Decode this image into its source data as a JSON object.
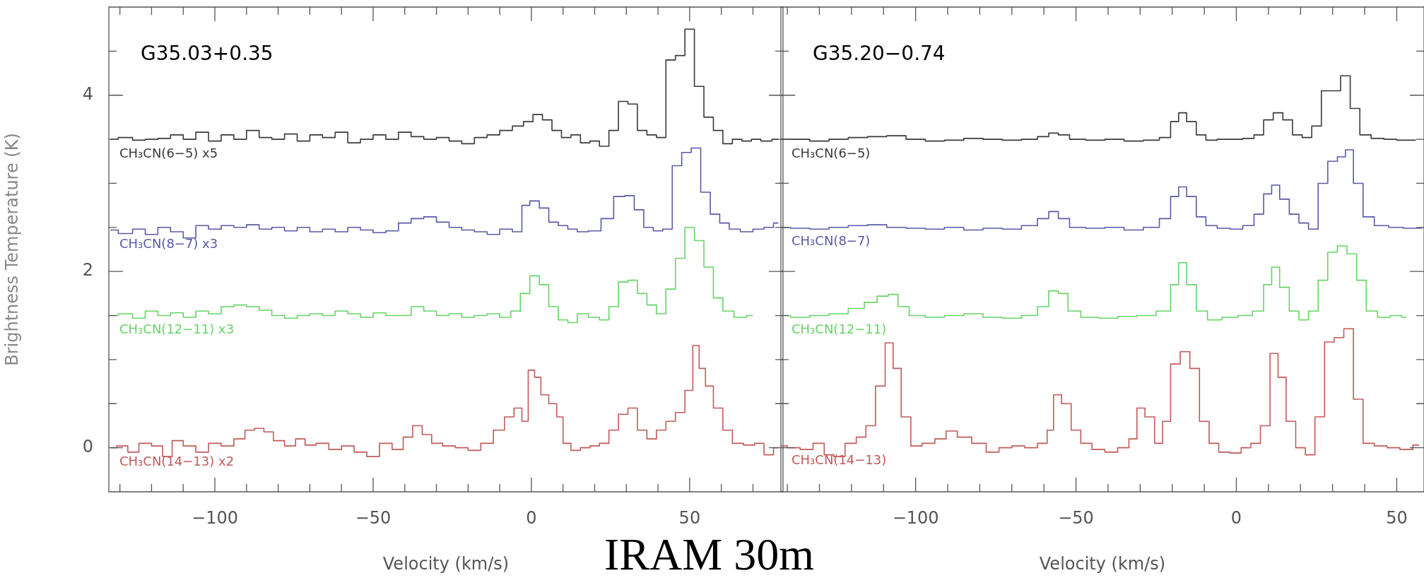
{
  "chart_data": [
    {
      "type": "step",
      "title": "G35.03+0.35",
      "xlabel": "Velocity (km/s)",
      "ylabel": "Brightness Temperature (K)",
      "legend": false,
      "grid": false,
      "xlim": [
        -133.5,
        79.5
      ],
      "ylim": [
        -0.5,
        5.0
      ],
      "xticks": [
        {
          "value": -130,
          "label": null
        },
        {
          "value": -120,
          "label": null
        },
        {
          "value": -110,
          "label": null
        },
        -100,
        {
          "value": -90,
          "label": null
        },
        {
          "value": -80,
          "label": null
        },
        {
          "value": -70,
          "label": null
        },
        {
          "value": -60,
          "label": null
        },
        -50,
        {
          "value": -40,
          "label": null
        },
        {
          "value": -30,
          "label": null
        },
        {
          "value": -20,
          "label": null
        },
        {
          "value": -10,
          "label": null
        },
        0,
        {
          "value": 10,
          "label": null
        },
        {
          "value": 20,
          "label": null
        },
        {
          "value": 30,
          "label": null
        },
        {
          "value": 40,
          "label": null
        },
        50,
        {
          "value": 60,
          "label": null
        },
        {
          "value": 70,
          "label": null
        }
      ],
      "yticks": [
        0,
        {
          "value": 0.5,
          "label": null
        },
        {
          "value": 1,
          "label": null
        },
        {
          "value": 1.5,
          "label": null
        },
        2,
        {
          "value": 2.5,
          "label": null
        },
        {
          "value": 3,
          "label": null
        },
        {
          "value": 3.5,
          "label": null
        },
        4,
        {
          "value": 4.5,
          "label": null
        }
      ],
      "annotations": [
        "IRAM 30m"
      ],
      "series": [
        {
          "name": "CH₃CN(6−5) x5",
          "color": "#3a3a3a",
          "x": [
            -133,
            -128,
            -124,
            -120,
            -116,
            -112,
            -108,
            -104,
            -100,
            -96,
            -92,
            -88,
            -84,
            -80,
            -76,
            -72,
            -68,
            -64,
            -60,
            -56,
            -52,
            -48,
            -44,
            -40,
            -36,
            -32,
            -28,
            -24,
            -20,
            -16,
            -12,
            -8,
            -4,
            -1,
            2,
            5,
            8,
            11,
            14,
            17,
            20,
            23,
            26,
            29,
            32,
            35,
            38,
            41,
            44,
            47,
            50,
            53,
            56,
            59,
            62,
            65,
            68,
            71,
            74,
            78
          ],
          "values": [
            3.5,
            3.52,
            3.49,
            3.5,
            3.51,
            3.55,
            3.5,
            3.58,
            3.48,
            3.55,
            3.5,
            3.6,
            3.52,
            3.5,
            3.56,
            3.48,
            3.55,
            3.52,
            3.58,
            3.46,
            3.5,
            3.55,
            3.5,
            3.58,
            3.53,
            3.5,
            3.52,
            3.48,
            3.45,
            3.52,
            3.55,
            3.6,
            3.65,
            3.7,
            3.78,
            3.72,
            3.6,
            3.52,
            3.55,
            3.46,
            3.48,
            3.42,
            3.6,
            3.93,
            3.9,
            3.6,
            3.55,
            3.52,
            4.4,
            4.45,
            4.75,
            4.1,
            3.75,
            3.6,
            3.45,
            3.5,
            3.48,
            3.5,
            3.48,
            3.5
          ]
        },
        {
          "name": "CH₃CN(8−7) x3",
          "color": "#5a5aa8",
          "x": [
            -133,
            -128,
            -124,
            -120,
            -116,
            -112,
            -108,
            -104,
            -100,
            -96,
            -92,
            -88,
            -84,
            -80,
            -76,
            -72,
            -68,
            -64,
            -60,
            -56,
            -52,
            -48,
            -44,
            -40,
            -36,
            -32,
            -28,
            -24,
            -20,
            -16,
            -12,
            -8,
            -4,
            -2,
            1,
            4,
            7,
            10,
            13,
            16,
            20,
            24,
            28,
            31,
            34,
            37,
            40,
            43,
            46,
            49,
            52,
            55,
            58,
            61,
            64,
            68,
            72,
            75,
            78
          ],
          "values": [
            2.47,
            2.43,
            2.48,
            2.42,
            2.5,
            2.45,
            2.38,
            2.52,
            2.48,
            2.52,
            2.5,
            2.53,
            2.48,
            2.5,
            2.46,
            2.5,
            2.45,
            2.48,
            2.45,
            2.5,
            2.47,
            2.44,
            2.46,
            2.55,
            2.6,
            2.62,
            2.56,
            2.5,
            2.47,
            2.45,
            2.42,
            2.48,
            2.45,
            2.75,
            2.8,
            2.72,
            2.56,
            2.52,
            2.48,
            2.45,
            2.46,
            2.6,
            2.85,
            2.86,
            2.7,
            2.5,
            2.46,
            2.48,
            3.2,
            3.35,
            3.4,
            2.9,
            2.65,
            2.55,
            2.48,
            2.45,
            2.48,
            2.5,
            2.55
          ]
        },
        {
          "name": "CH₃CN(12−11) x3",
          "color": "#66d466",
          "x": [
            -133,
            -128,
            -124,
            -120,
            -116,
            -112,
            -108,
            -104,
            -100,
            -96,
            -92,
            -88,
            -84,
            -80,
            -76,
            -72,
            -68,
            -64,
            -60,
            -56,
            -52,
            -48,
            -44,
            -40,
            -36,
            -32,
            -28,
            -24,
            -20,
            -16,
            -12,
            -8,
            -5,
            -2,
            1,
            4,
            7,
            10,
            13,
            16,
            20,
            23,
            26,
            29,
            32,
            35,
            38,
            41,
            44,
            47,
            50,
            53,
            56,
            59,
            62,
            66,
            70
          ],
          "values": [
            1.5,
            1.52,
            1.47,
            1.55,
            1.5,
            1.53,
            1.48,
            1.55,
            1.52,
            1.6,
            1.62,
            1.6,
            1.56,
            1.5,
            1.47,
            1.5,
            1.52,
            1.5,
            1.55,
            1.52,
            1.48,
            1.53,
            1.5,
            1.5,
            1.6,
            1.55,
            1.5,
            1.52,
            1.48,
            1.5,
            1.52,
            1.48,
            1.55,
            1.75,
            1.95,
            1.85,
            1.6,
            1.45,
            1.42,
            1.52,
            1.48,
            1.45,
            1.6,
            1.88,
            1.9,
            1.75,
            1.62,
            1.52,
            1.8,
            2.15,
            2.5,
            2.35,
            2.05,
            1.7,
            1.55,
            1.48,
            1.5
          ]
        },
        {
          "name": "CH₃CN(14−13) x2",
          "color": "#c25a5a",
          "x": [
            -133,
            -129,
            -126,
            -122,
            -118,
            -115,
            -112,
            -108,
            -104,
            -100,
            -96,
            -92,
            -89,
            -86,
            -83,
            -80,
            -76,
            -73,
            -70,
            -66,
            -62,
            -58,
            -54,
            -50,
            -46,
            -42,
            -39,
            -36,
            -33,
            -30,
            -26,
            -22,
            -18,
            -14,
            -10,
            -7,
            -4,
            -2,
            0,
            2,
            4,
            7,
            9,
            11,
            14,
            17,
            20,
            23,
            26,
            29,
            32,
            35,
            38,
            41,
            44,
            47,
            50,
            52,
            54,
            56,
            59,
            62,
            65,
            69,
            72,
            75,
            78
          ],
          "values": [
            0,
            0.02,
            -0.05,
            0.05,
            0.02,
            -0.1,
            0.08,
            0.02,
            -0.05,
            0.05,
            0.02,
            0.1,
            0.2,
            0.22,
            0.18,
            0.08,
            0.02,
            0.1,
            0.03,
            0.05,
            -0.02,
            0.02,
            -0.05,
            -0.1,
            0.05,
            -0.02,
            0.12,
            0.25,
            0.15,
            0.05,
            0.02,
            0,
            -0.03,
            0.05,
            0.2,
            0.35,
            0.45,
            0.3,
            0.88,
            0.8,
            0.6,
            0.5,
            0.35,
            0.05,
            -0.03,
            0,
            0.02,
            0.05,
            0.2,
            0.38,
            0.45,
            0.2,
            0.1,
            0.2,
            0.3,
            0.4,
            0.65,
            1.16,
            0.9,
            0.7,
            0.45,
            0.2,
            0.05,
            0.03,
            0.05,
            -0.08,
            0
          ]
        }
      ]
    },
    {
      "type": "step",
      "title": "G35.20−0.74",
      "xlabel": "Velocity (km/s)",
      "legend": false,
      "grid": false,
      "tick_labels": "x",
      "xlim": [
        -142,
        58.5
      ],
      "ylim": [
        -0.5,
        5.0
      ],
      "xticks": [
        {
          "value": -140,
          "label": null
        },
        {
          "value": -130,
          "label": null
        },
        {
          "value": -120,
          "label": null
        },
        {
          "value": -110,
          "label": null
        },
        -100,
        {
          "value": -90,
          "label": null
        },
        {
          "value": -80,
          "label": null
        },
        {
          "value": -70,
          "label": null
        },
        {
          "value": -60,
          "label": null
        },
        -50,
        {
          "value": -40,
          "label": null
        },
        {
          "value": -30,
          "label": null
        },
        {
          "value": -20,
          "label": null
        },
        {
          "value": -10,
          "label": null
        },
        0,
        {
          "value": 10,
          "label": null
        },
        {
          "value": 20,
          "label": null
        },
        {
          "value": 30,
          "label": null
        },
        {
          "value": 40,
          "label": null
        },
        50
      ],
      "yticks": [
        0,
        {
          "value": 0.5,
          "label": null
        },
        {
          "value": 1,
          "label": null
        },
        {
          "value": 1.5,
          "label": null
        },
        2,
        {
          "value": 2.5,
          "label": null
        },
        {
          "value": 3,
          "label": null
        },
        {
          "value": 3.5,
          "label": null
        },
        4,
        {
          "value": 4.5,
          "label": null
        }
      ],
      "series": [
        {
          "name": "CH₃CN(6−5)",
          "color": "#3a3a3a",
          "x": [
            -142,
            -136,
            -130,
            -124,
            -118,
            -112,
            -106,
            -100,
            -94,
            -88,
            -82,
            -76,
            -70,
            -64,
            -60,
            -57,
            -54,
            -50,
            -44,
            -38,
            -32,
            -26,
            -22,
            -19,
            -17,
            -14,
            -11,
            -8,
            -4,
            0,
            4,
            7,
            10,
            13,
            16,
            19,
            22,
            25,
            28,
            31,
            34,
            37,
            40,
            44,
            48,
            52,
            56
          ],
          "values": [
            3.5,
            3.5,
            3.48,
            3.5,
            3.52,
            3.53,
            3.54,
            3.5,
            3.48,
            3.49,
            3.51,
            3.5,
            3.49,
            3.5,
            3.53,
            3.57,
            3.55,
            3.5,
            3.49,
            3.5,
            3.48,
            3.49,
            3.52,
            3.7,
            3.8,
            3.7,
            3.55,
            3.49,
            3.5,
            3.5,
            3.51,
            3.55,
            3.72,
            3.8,
            3.72,
            3.55,
            3.52,
            3.65,
            4.05,
            4.05,
            4.22,
            3.85,
            3.55,
            3.51,
            3.5,
            3.49,
            3.49
          ]
        },
        {
          "name": "CH₃CN(8−7)",
          "color": "#5a5aa8",
          "x": [
            -142,
            -136,
            -130,
            -124,
            -118,
            -112,
            -106,
            -100,
            -94,
            -88,
            -82,
            -76,
            -70,
            -64,
            -60,
            -57,
            -54,
            -50,
            -44,
            -38,
            -32,
            -26,
            -22,
            -19,
            -17,
            -14,
            -11,
            -8,
            -4,
            0,
            4,
            7,
            10,
            12,
            15,
            18,
            21,
            24,
            27,
            30,
            33,
            35,
            38,
            41,
            45,
            50,
            54,
            58
          ],
          "values": [
            2.5,
            2.49,
            2.48,
            2.5,
            2.52,
            2.53,
            2.5,
            2.49,
            2.48,
            2.5,
            2.47,
            2.49,
            2.48,
            2.52,
            2.6,
            2.68,
            2.6,
            2.5,
            2.49,
            2.5,
            2.47,
            2.5,
            2.6,
            2.85,
            2.96,
            2.85,
            2.62,
            2.52,
            2.49,
            2.48,
            2.52,
            2.65,
            2.88,
            2.98,
            2.82,
            2.65,
            2.55,
            2.48,
            3.0,
            3.25,
            3.3,
            3.38,
            3.0,
            2.62,
            2.52,
            2.5,
            2.49,
            2.49
          ]
        },
        {
          "name": "CH₃CN(12−11)",
          "color": "#66d466",
          "x": [
            -142,
            -136,
            -130,
            -124,
            -118,
            -114,
            -110,
            -107,
            -104,
            -100,
            -94,
            -88,
            -82,
            -76,
            -70,
            -64,
            -60,
            -57,
            -54,
            -51,
            -46,
            -40,
            -34,
            -28,
            -22,
            -19,
            -17,
            -14,
            -11,
            -7,
            -2,
            3,
            7,
            10,
            12,
            15,
            18,
            21,
            24,
            27,
            30,
            33,
            36,
            39,
            42,
            46,
            50,
            53
          ],
          "values": [
            1.5,
            1.48,
            1.5,
            1.52,
            1.58,
            1.65,
            1.72,
            1.74,
            1.6,
            1.5,
            1.48,
            1.5,
            1.52,
            1.48,
            1.47,
            1.5,
            1.6,
            1.78,
            1.75,
            1.55,
            1.48,
            1.47,
            1.49,
            1.5,
            1.55,
            1.85,
            2.1,
            1.85,
            1.55,
            1.45,
            1.48,
            1.5,
            1.55,
            1.85,
            2.05,
            1.82,
            1.55,
            1.45,
            1.55,
            1.9,
            2.22,
            2.29,
            2.2,
            1.9,
            1.55,
            1.48,
            1.5,
            1.48
          ]
        },
        {
          "name": "CH₃CN(14−13)",
          "color": "#c25a5a",
          "x": [
            -142,
            -138,
            -134,
            -130,
            -127,
            -124,
            -120,
            -117,
            -114,
            -111,
            -108,
            -106,
            -103,
            -100,
            -96,
            -92,
            -89,
            -85,
            -80,
            -76,
            -72,
            -68,
            -64,
            -60,
            -58,
            -56,
            -53,
            -50,
            -47,
            -43,
            -39,
            -35,
            -32,
            -30,
            -27,
            -24,
            -22,
            -19,
            -16,
            -13,
            -10,
            -7,
            -4,
            0,
            3,
            6,
            9,
            12,
            14,
            17,
            20,
            23,
            26,
            29,
            32,
            35,
            38,
            41,
            45,
            49,
            53,
            57
          ],
          "values": [
            0.02,
            0,
            -0.02,
            0.05,
            -0.08,
            -0.1,
            0.05,
            0.12,
            0.25,
            0.7,
            1.19,
            0.9,
            0.35,
            0.02,
            0.05,
            0.1,
            0.19,
            0.12,
            0.05,
            -0.05,
            0,
            0.02,
            0,
            0.05,
            0.2,
            0.6,
            0.5,
            0.2,
            0.05,
            -0.02,
            -0.05,
            0,
            0.1,
            0.45,
            0.35,
            0.05,
            0.3,
            0.95,
            1.09,
            0.9,
            0.3,
            0.05,
            -0.05,
            -0.06,
            0,
            0.05,
            0.25,
            1.07,
            0.8,
            0.3,
            0,
            -0.08,
            0.35,
            1.2,
            1.25,
            1.35,
            0.55,
            0.05,
            0.02,
            0,
            -0.02,
            0.03
          ]
        }
      ]
    }
  ]
}
